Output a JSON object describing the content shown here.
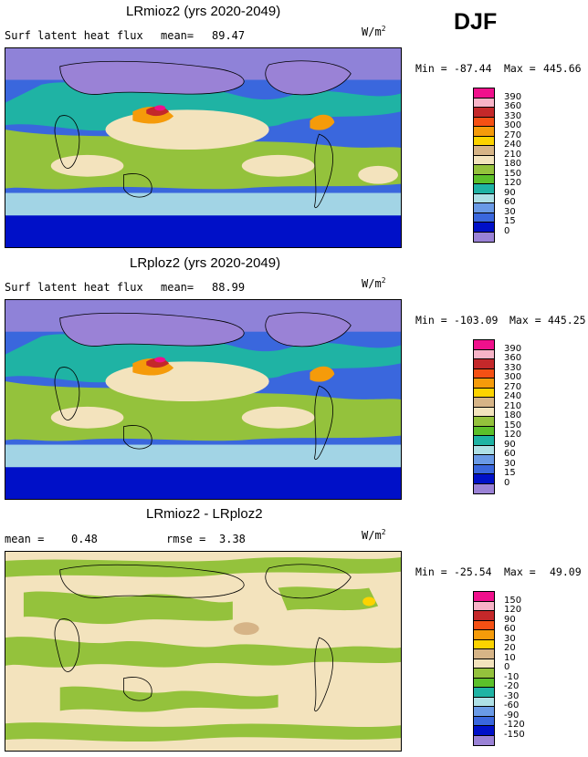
{
  "season": "DJF",
  "panels": [
    {
      "title": "LRmioz2 (yrs 2020-2049)",
      "left_label": "Surf latent heat flux",
      "mean_label": "mean=",
      "mean_value": "89.47",
      "units": "W/m",
      "units_sup": "2",
      "min_label": "Min =",
      "min_value": "-87.44",
      "max_label": "Max =",
      "max_value": "445.66",
      "levels": [
        "390",
        "360",
        "330",
        "300",
        "270",
        "240",
        "210",
        "180",
        "150",
        "120",
        "90",
        "60",
        "30",
        "15",
        "0"
      ],
      "colors": [
        "#f0108c",
        "#f7b3c7",
        "#c4282a",
        "#f55014",
        "#f59b0a",
        "#fcd300",
        "#d6b487",
        "#f3e3bd",
        "#94c23c",
        "#5cc02a",
        "#1fb3a4",
        "#aee0e6",
        "#6a9ae6",
        "#3a67dd",
        "#0010c8",
        "#9a82d6"
      ]
    },
    {
      "title": "LRploz2 (yrs 2020-2049)",
      "left_label": "Surf latent heat flux",
      "mean_label": "mean=",
      "mean_value": "88.99",
      "units": "W/m",
      "units_sup": "2",
      "min_label": "Min =",
      "min_value": "-103.09",
      "max_label": "Max =",
      "max_value": "445.25",
      "levels": [
        "390",
        "360",
        "330",
        "300",
        "270",
        "240",
        "210",
        "180",
        "150",
        "120",
        "90",
        "60",
        "30",
        "15",
        "0"
      ],
      "colors": [
        "#f0108c",
        "#f7b3c7",
        "#c4282a",
        "#f55014",
        "#f59b0a",
        "#fcd300",
        "#d6b487",
        "#f3e3bd",
        "#94c23c",
        "#5cc02a",
        "#1fb3a4",
        "#aee0e6",
        "#6a9ae6",
        "#3a67dd",
        "#0010c8",
        "#9a82d6"
      ]
    },
    {
      "title": "LRmioz2 - LRploz2",
      "left_label": "mean =",
      "mean_value": "0.48",
      "rmse_label": "rmse =",
      "rmse_value": "3.38",
      "units": "W/m",
      "units_sup": "2",
      "min_label": "Min =",
      "min_value": "-25.54",
      "max_label": "Max =",
      "max_value": "49.09",
      "levels": [
        "150",
        "120",
        "90",
        "60",
        "30",
        "20",
        "10",
        "0",
        "-10",
        "-20",
        "-30",
        "-60",
        "-90",
        "-120",
        "-150"
      ],
      "colors": [
        "#f0108c",
        "#f7b3c7",
        "#c4282a",
        "#f55014",
        "#f59b0a",
        "#fcd300",
        "#d6b487",
        "#f3e3bd",
        "#94c23c",
        "#5cc02a",
        "#1fb3a4",
        "#aee0e6",
        "#6a9ae6",
        "#3a67dd",
        "#0010c8",
        "#9a82d6"
      ]
    }
  ]
}
